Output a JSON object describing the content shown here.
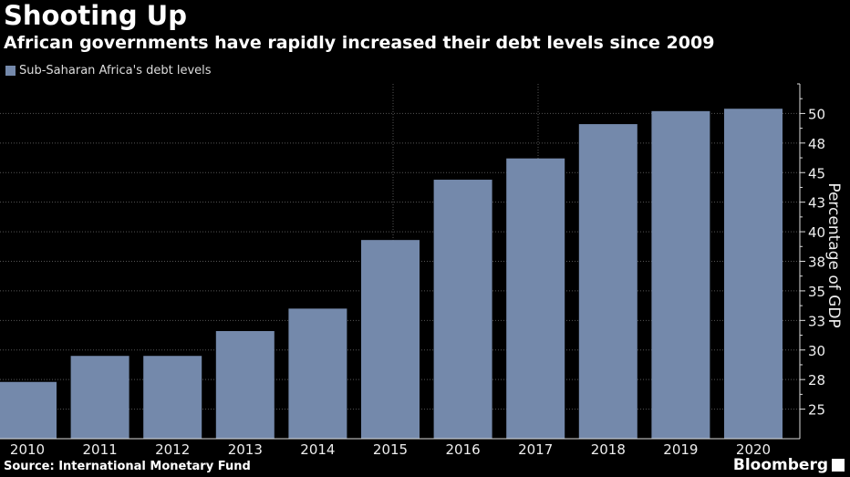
{
  "title": "Shooting Up",
  "subtitle": "African governments have rapidly increased their debt levels since 2009",
  "source": "Source: International Monetary Fund",
  "logo": "Bloomberg",
  "colors": {
    "bar": "#7489ab",
    "background": "#000000"
  },
  "chart_data": {
    "type": "bar",
    "title": "Shooting Up",
    "legend": [
      "Sub-Saharan Africa's debt levels"
    ],
    "legend_position": "top-left",
    "categories": [
      "2010",
      "2011",
      "2012",
      "2013",
      "2014",
      "2015",
      "2016",
      "2017",
      "2018",
      "2019",
      "2020"
    ],
    "values": [
      27.3,
      29.5,
      29.5,
      31.6,
      33.5,
      39.3,
      44.4,
      46.2,
      49.1,
      50.2,
      50.4
    ],
    "xlabel": "",
    "ylabel": "Percentage of GDP",
    "ylim": [
      22.5,
      52.5
    ],
    "yticks": [
      25,
      27.5,
      30,
      32.5,
      35,
      37.5,
      40,
      42.5,
      45,
      47.5,
      50
    ],
    "ytick_labels": [
      "25",
      "28",
      "30",
      "33",
      "35",
      "38",
      "40",
      "43",
      "45",
      "48",
      "50"
    ],
    "y_axis_side": "right",
    "grid": true
  }
}
